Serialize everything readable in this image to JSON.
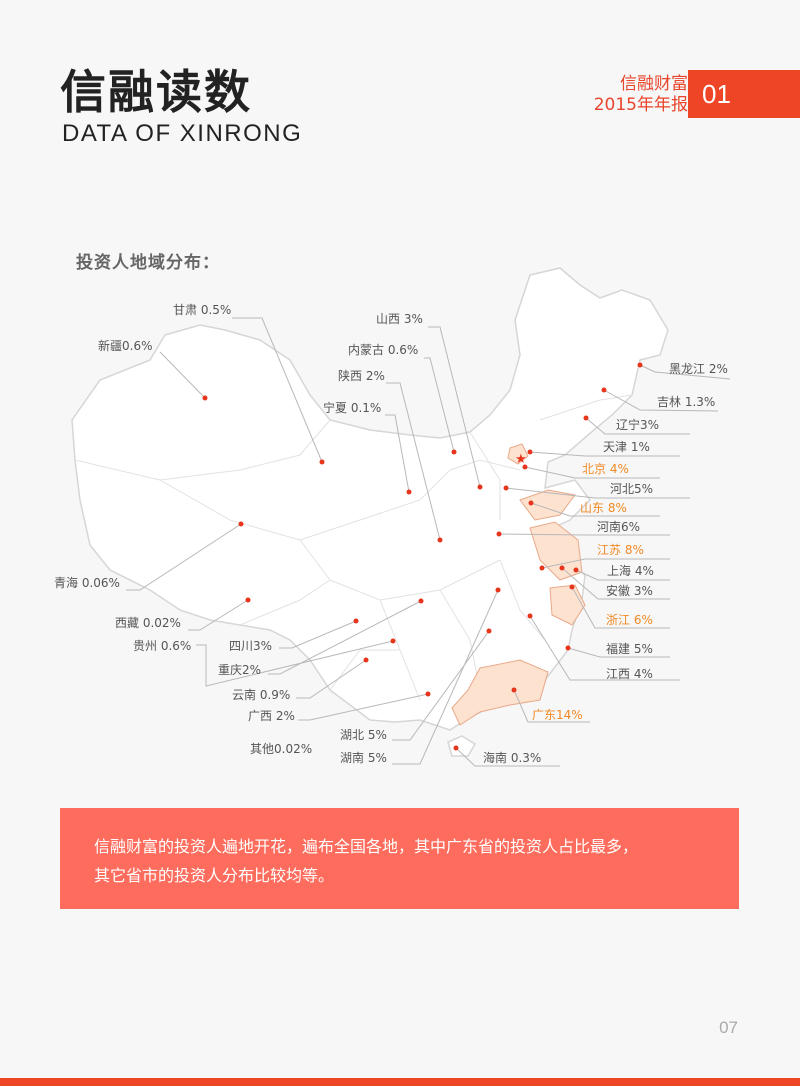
{
  "header": {
    "title_cn": "信融读数",
    "title_en": "DATA OF XINRONG",
    "brand_line1": "信融财富",
    "brand_line2": "2015年年报",
    "section_number": "01"
  },
  "section_label": "投资人地域分布：",
  "map": {
    "highlight_color": "#f08a25",
    "dot_color": "#e6351c",
    "regions": [
      {
        "id": "gansu",
        "label": "甘肃 0.5%",
        "highlight": false
      },
      {
        "id": "xinjiang",
        "label": "新疆0.6%",
        "highlight": false
      },
      {
        "id": "shanxi",
        "label": "山西 3%",
        "highlight": false
      },
      {
        "id": "neimenggu",
        "label": "内蒙古 0.6%",
        "highlight": false
      },
      {
        "id": "shaanxi",
        "label": "陕西 2%",
        "highlight": false
      },
      {
        "id": "ningxia",
        "label": "宁夏 0.1%",
        "highlight": false
      },
      {
        "id": "heilongjiang",
        "label": "黑龙江 2%",
        "highlight": false
      },
      {
        "id": "jilin",
        "label": "吉林 1.3%",
        "highlight": false
      },
      {
        "id": "liaoning",
        "label": "辽宁3%",
        "highlight": false
      },
      {
        "id": "tianjin",
        "label": "天津 1%",
        "highlight": false
      },
      {
        "id": "beijing",
        "label": "北京 4%",
        "highlight": true
      },
      {
        "id": "hebei",
        "label": "河北5%",
        "highlight": false
      },
      {
        "id": "shandong",
        "label": "山东 8%",
        "highlight": true
      },
      {
        "id": "henan",
        "label": "河南6%",
        "highlight": false
      },
      {
        "id": "jiangsu",
        "label": "江苏 8%",
        "highlight": true
      },
      {
        "id": "shanghai",
        "label": "上海 4%",
        "highlight": false
      },
      {
        "id": "anhui",
        "label": "安徽 3%",
        "highlight": false
      },
      {
        "id": "zhejiang",
        "label": "浙江 6%",
        "highlight": true
      },
      {
        "id": "fujian",
        "label": "福建 5%",
        "highlight": false
      },
      {
        "id": "jiangxi",
        "label": "江西 4%",
        "highlight": false
      },
      {
        "id": "guangdong",
        "label": "广东14%",
        "highlight": true
      },
      {
        "id": "hainan",
        "label": "海南 0.3%",
        "highlight": false
      },
      {
        "id": "qinghai",
        "label": "青海 0.06%",
        "highlight": false
      },
      {
        "id": "xizang",
        "label": "西藏 0.02%",
        "highlight": false
      },
      {
        "id": "guizhou",
        "label": "贵州 0.6%",
        "highlight": false
      },
      {
        "id": "sichuan",
        "label": "四川3%",
        "highlight": false
      },
      {
        "id": "chongqing",
        "label": "重庆2%",
        "highlight": false
      },
      {
        "id": "yunnan",
        "label": "云南 0.9%",
        "highlight": false
      },
      {
        "id": "guangxi",
        "label": "广西 2%",
        "highlight": false
      },
      {
        "id": "qita",
        "label": "其他0.02%",
        "highlight": false
      },
      {
        "id": "hubei",
        "label": "湖北 5%",
        "highlight": false
      },
      {
        "id": "hunan",
        "label": "湖南 5%",
        "highlight": false
      }
    ]
  },
  "summary": {
    "line1": "信融财富的投资人遍地开花，遍布全国各地，其中广东省的投资人占比最多，",
    "line2": "其它省市的投资人分布比较均等。"
  },
  "page_number": "07"
}
